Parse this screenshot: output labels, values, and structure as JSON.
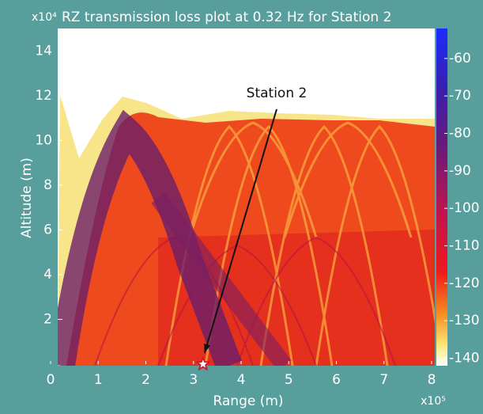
{
  "chart_data": {
    "type": "heatmap",
    "title": "RZ transmission loss plot at 0.32 Hz for Station 2",
    "x_label": "Range (m)",
    "y_label": "Altitude (m)",
    "x_multiplier": "x10⁵",
    "y_multiplier": "x10⁴",
    "xlim": [
      0,
      8
    ],
    "xticks": [
      0,
      1,
      2,
      3,
      4,
      5,
      6,
      7,
      8
    ],
    "ylim": [
      0,
      15
    ],
    "yticks": [
      2,
      4,
      6,
      8,
      10,
      12,
      14
    ],
    "clim": [
      -52,
      -142
    ],
    "cticks": [
      -60,
      -70,
      -80,
      -90,
      -100,
      -110,
      -120,
      -130,
      -140
    ],
    "annotation": {
      "text": "Station 2",
      "x": 3.2,
      "y": 0
    }
  }
}
